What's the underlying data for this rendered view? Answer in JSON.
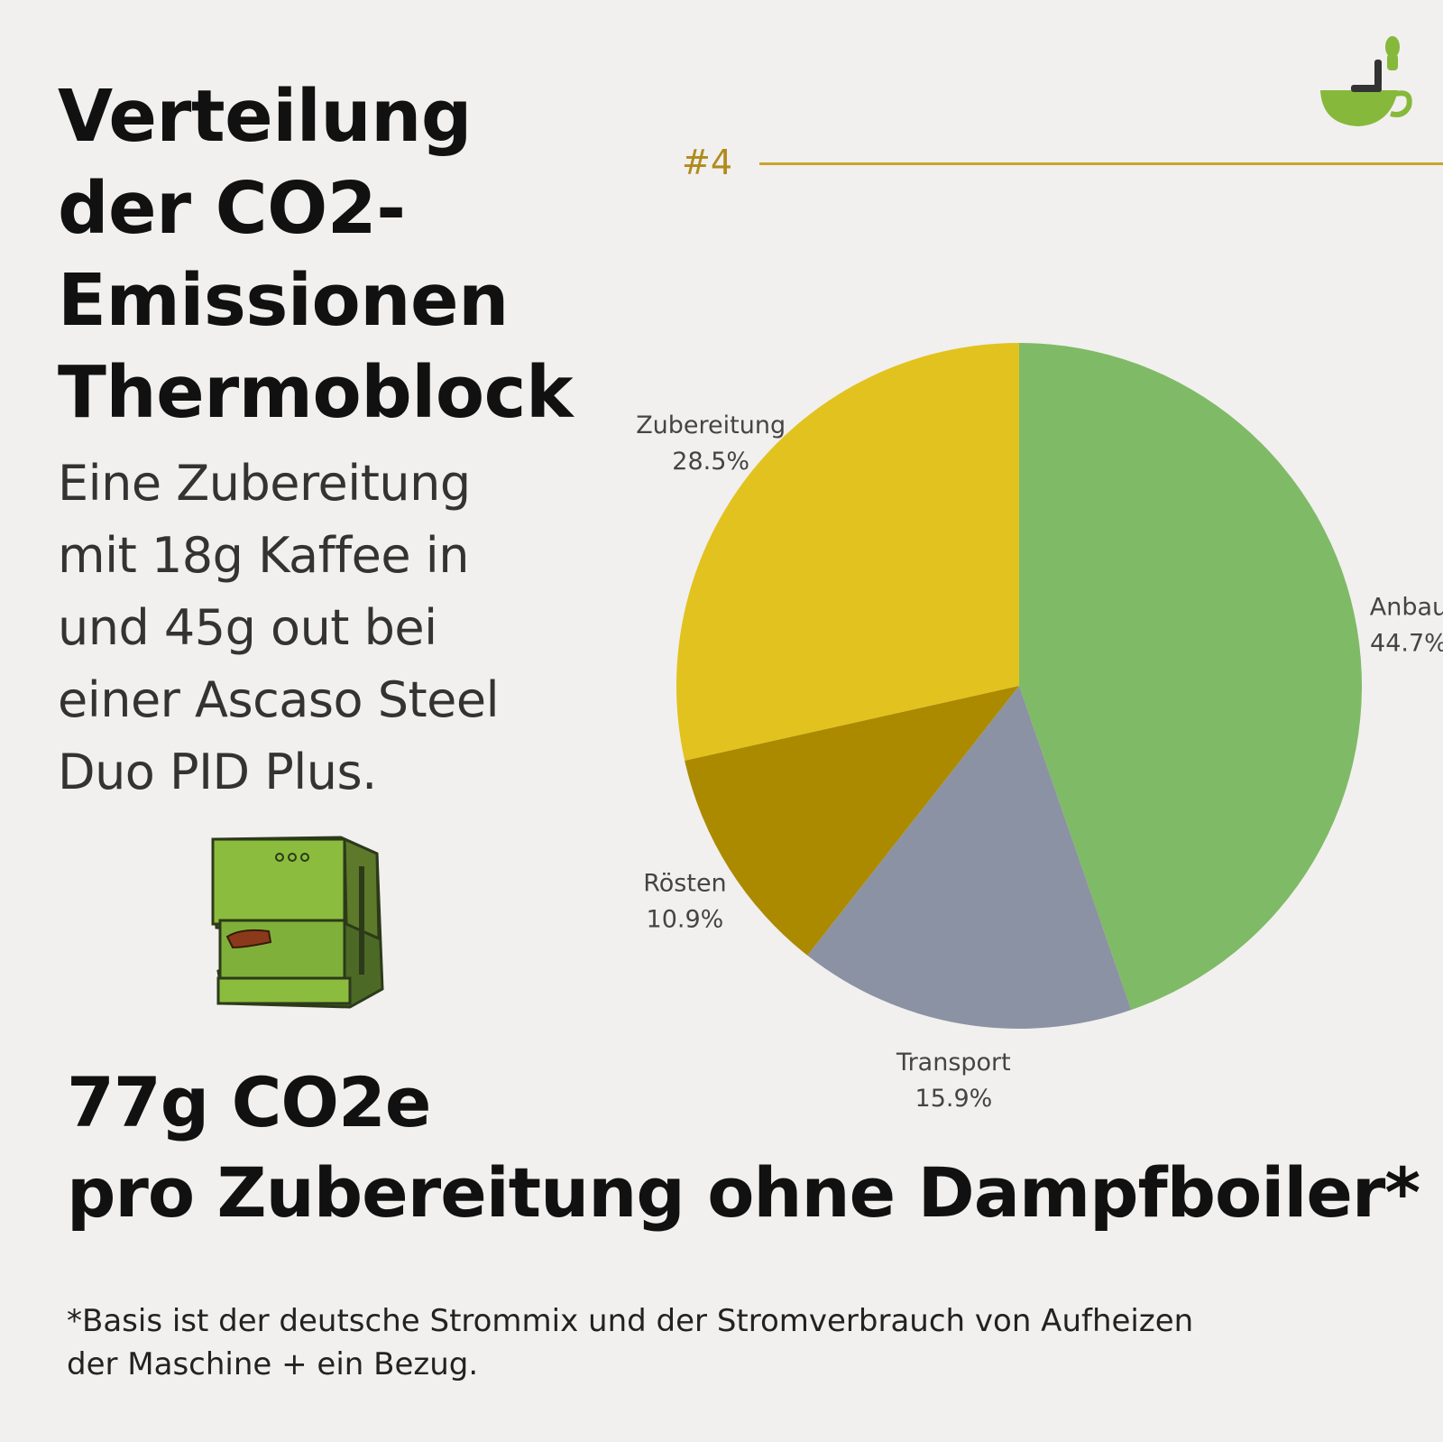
{
  "title_lines": [
    "Verteilung",
    "der CO2-",
    "Emissionen",
    "Thermoblock"
  ],
  "description_lines": [
    "Eine Zubereitung",
    "mit 18g Kaffee in",
    "und 45g out bei",
    "einer Ascaso Steel",
    "Duo PID Plus."
  ],
  "badge": "#4",
  "total_lines": [
    "77g CO2e",
    "pro Zubereitung ohne Dampfboiler*"
  ],
  "footnote_lines": [
    "*Basis ist der deutsche Strommix und der Stromverbrauch von Aufheizen",
    "der Maschine + ein Bezug."
  ],
  "icons": {
    "logo": "coffee-cup-logo-icon",
    "machine": "espresso-machine-illustration"
  },
  "colors": {
    "accent": "#b08b1c",
    "green": "#7fba66",
    "gray": "#8b92a3",
    "dark_gold": "#ab8a00",
    "yellow": "#e2c21e"
  },
  "chart_data": {
    "type": "pie",
    "slices": [
      {
        "label": "Anbau",
        "value": 44.7,
        "display": "44.7%",
        "color": "#7fba66"
      },
      {
        "label": "Transport",
        "value": 15.9,
        "display": "15.9%",
        "color": "#8b92a3"
      },
      {
        "label": "Rösten",
        "value": 10.9,
        "display": "10.9%",
        "color": "#ab8a00"
      },
      {
        "label": "Zubereitung",
        "value": 28.5,
        "display": "28.5%",
        "color": "#e2c21e"
      }
    ],
    "start": "12 o'clock",
    "direction": "clockwise"
  }
}
